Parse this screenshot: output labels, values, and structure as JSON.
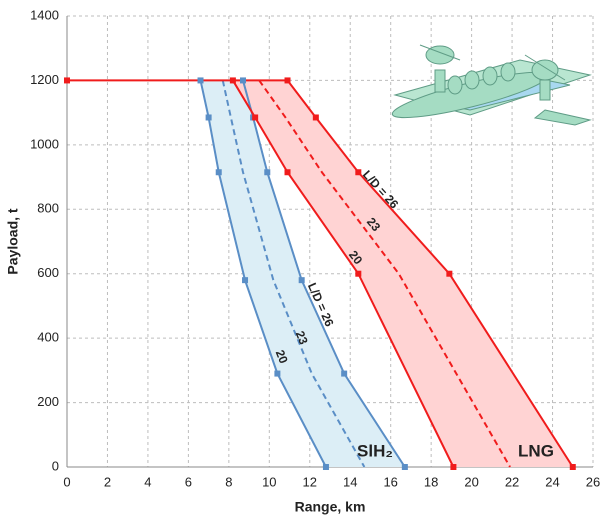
{
  "chart_data": {
    "type": "line",
    "x_label": "Range, km",
    "y_label": "Payload, t",
    "xlim": [
      0,
      26
    ],
    "xticks": [
      0,
      2,
      4,
      6,
      8,
      10,
      12,
      14,
      16,
      18,
      20,
      22,
      24,
      26
    ],
    "ylim": [
      0,
      1400
    ],
    "yticks": [
      0,
      200,
      400,
      600,
      800,
      1000,
      1200,
      1400
    ],
    "grid": true,
    "groups": [
      {
        "name": "SlH₂",
        "color": "#5a8ec6",
        "fill": "#dceef6",
        "series": [
          {
            "name": "20",
            "dashed": false,
            "x": [
              6.6,
              7.0,
              7.5,
              8.8,
              10.4,
              12.8
            ],
            "y": [
              1200,
              1085,
              915,
              580,
              290,
              0
            ]
          },
          {
            "name": "23",
            "dashed": true,
            "x": [
              7.7,
              8.1,
              8.7,
              10.2,
              12.1,
              14.7
            ],
            "y": [
              1200,
              1085,
              915,
              580,
              290,
              0
            ]
          },
          {
            "name": "L/D = 26",
            "dashed": false,
            "x": [
              8.7,
              9.2,
              9.9,
              11.6,
              13.7,
              16.7
            ],
            "y": [
              1200,
              1085,
              915,
              580,
              290,
              0
            ]
          }
        ]
      },
      {
        "name": "LNG",
        "color": "#f01c1c",
        "fill": "#ffd3d3",
        "series": [
          {
            "name": "20",
            "dashed": false,
            "x": [
              8.2,
              9.3,
              10.9,
              14.4,
              19.1
            ],
            "y": [
              1200,
              1085,
              915,
              600,
              0
            ]
          },
          {
            "name": "23",
            "dashed": true,
            "x": [
              9.5,
              10.8,
              12.6,
              16.4,
              21.9
            ],
            "y": [
              1200,
              1085,
              915,
              600,
              0
            ]
          },
          {
            "name": "L/D = 26",
            "dashed": false,
            "x": [
              0,
              10.9,
              12.3,
              14.4,
              18.9,
              25.0
            ],
            "y": [
              1200,
              1200,
              1085,
              915,
              600,
              0
            ]
          }
        ]
      }
    ]
  }
}
